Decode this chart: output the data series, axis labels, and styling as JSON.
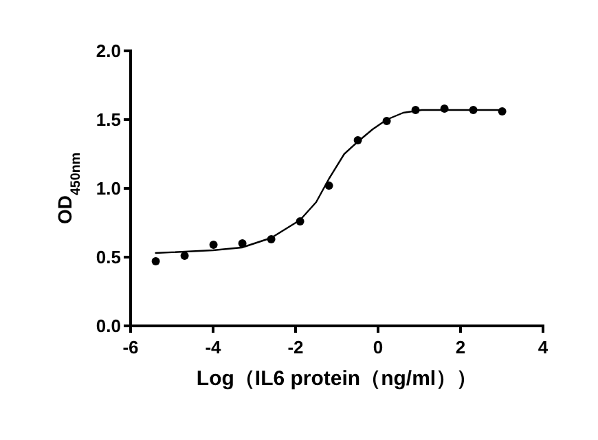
{
  "chart_data": {
    "type": "scatter",
    "xlabel": "Log（IL6 protein（ng/ml））",
    "ylabel": "OD$_{450nm}$",
    "xlim": [
      -6,
      4
    ],
    "xticks": [
      -6,
      -4,
      -2,
      0,
      2,
      4
    ],
    "ylim": [
      0,
      2.0
    ],
    "yticks": [
      {
        "value": 0,
        "label": "0.0"
      },
      {
        "value": 0.5,
        "label": "0.5"
      },
      {
        "value": 1.0,
        "label": "1.0"
      },
      {
        "value": 1.5,
        "label": "1.5"
      },
      {
        "value": 2.0,
        "label": "2.0"
      }
    ],
    "grid": false,
    "series": [
      {
        "color": "#000000",
        "marker": "circle",
        "x": [
          -5.39,
          -4.69,
          -3.99,
          -3.29,
          -2.59,
          -1.89,
          -1.19,
          -0.49,
          0.21,
          0.91,
          1.61,
          2.31,
          3.01
        ],
        "values": [
          0.47,
          0.51,
          0.59,
          0.6,
          0.63,
          0.76,
          1.02,
          1.35,
          1.49,
          1.57,
          1.58,
          1.57,
          1.56
        ]
      },
      {
        "type": "line",
        "color": "#000000",
        "marker": "none",
        "line_style": "solid",
        "x": [
          -5.39,
          -4.0,
          -3.3,
          -2.59,
          -1.89,
          -1.5,
          -1.19,
          -0.82,
          -0.49,
          -0.13,
          0.21,
          0.61,
          1.06,
          1.61,
          2.31,
          3.01
        ],
        "values": [
          0.53,
          0.55,
          0.57,
          0.64,
          0.77,
          0.9,
          1.07,
          1.25,
          1.34,
          1.43,
          1.5,
          1.55,
          1.57,
          1.57,
          1.57,
          1.57
        ]
      }
    ]
  }
}
